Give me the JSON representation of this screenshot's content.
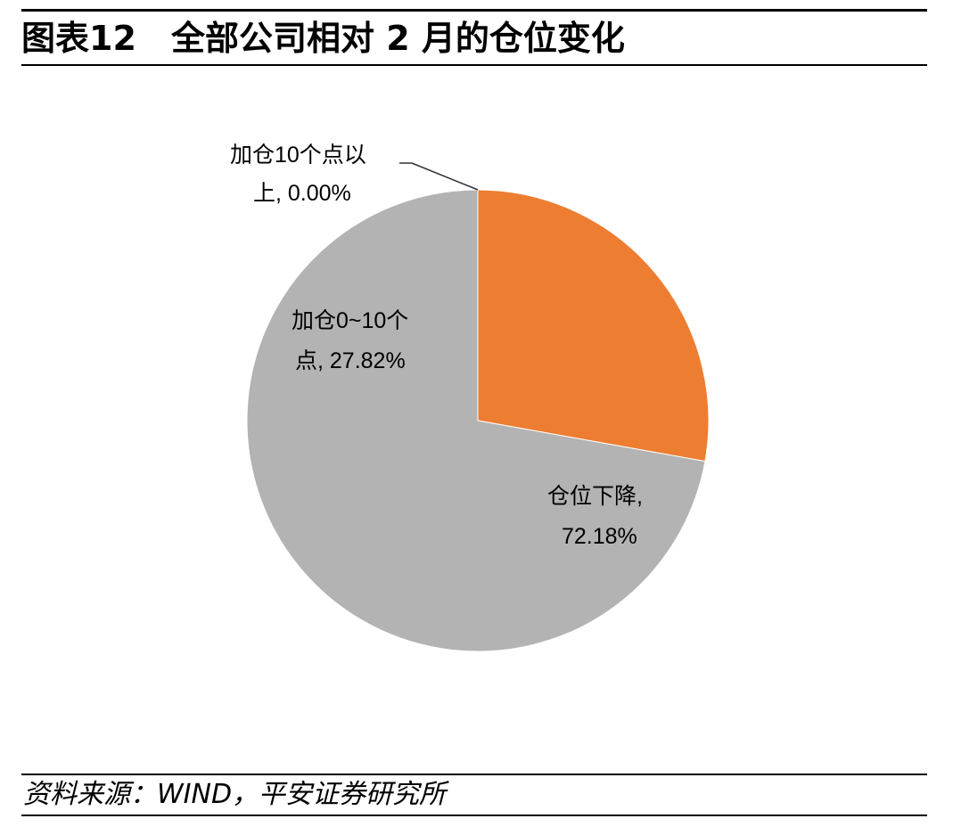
{
  "header": {
    "figure_number": "图表12",
    "title": "全部公司相对 2 月的仓位变化"
  },
  "chart_data": {
    "type": "pie",
    "title": "全部公司相对 2 月的仓位变化",
    "slices": [
      {
        "label_line1": "加仓10个点以",
        "label_line2": "上, 0.00%",
        "name": "加仓10个点以上",
        "value": 0.0,
        "color": "#4472c4"
      },
      {
        "label_line1": "加仓0~10个",
        "label_line2": "点, 27.82%",
        "name": "加仓0~10个点",
        "value": 27.82,
        "color": "#ed7d31"
      },
      {
        "label_line1": "仓位下降,",
        "label_line2": "72.18%",
        "name": "仓位下降",
        "value": 72.18,
        "color": "#b3b3b3"
      }
    ]
  },
  "footer": {
    "source": "资料来源：WIND，平安证券研究所"
  }
}
